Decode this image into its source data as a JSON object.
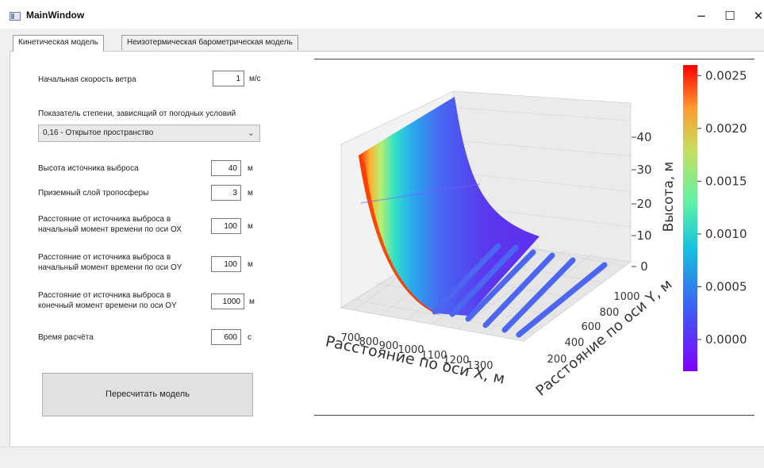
{
  "window": {
    "title": "MainWindow",
    "minimize": "−",
    "maximize": "☐",
    "close": "✕"
  },
  "tabs": [
    {
      "label": "Кинетическая модель"
    },
    {
      "label": "Неизотермическая барометрическая модель"
    }
  ],
  "form": {
    "wind_speed": {
      "label": "Начальная скорость ветра",
      "value": "1",
      "unit": "м/с"
    },
    "exponent": {
      "label": "Показатель степени, зависящий от погодных условий",
      "selected": "0,16 - Открытое пространство"
    },
    "source_height": {
      "label": "Высота источника выброса",
      "value": "40",
      "unit": "м"
    },
    "ground_layer": {
      "label": "Приземный слой тропосферы",
      "value": "3",
      "unit": "м"
    },
    "dist_ox_start": {
      "label_line1": "Расстояние  от  источника  выброса  в",
      "label_line2": "начальный момент времени по оси ОХ",
      "value": "100",
      "unit": "м"
    },
    "dist_oy_start": {
      "label_line1": "Расстояние  от  источника  выброса  в",
      "label_line2": "начальный момент времени по оси ОY",
      "value": "100",
      "unit": "м"
    },
    "dist_oy_end": {
      "label_line1": "Расстояние от источника выброса в",
      "label_line2": "конечный момент времени по оси ОY",
      "value": "1000",
      "unit": "м"
    },
    "calc_time": {
      "label": "Время расчёта",
      "value": "600",
      "unit": "с"
    },
    "recalc_button": "Пересчитать модель"
  },
  "chart_data": {
    "type": "surface3d",
    "xlabel": "Расстояние по оси X, м",
    "ylabel": "Расстояние по оси Y, м",
    "zlabel": "Высота, м",
    "x_ticks": [
      "700",
      "800",
      "900",
      "1000",
      "1100",
      "1200",
      "1300"
    ],
    "y_ticks": [
      "200",
      "400",
      "600",
      "800",
      "1000"
    ],
    "z_ticks": [
      "0",
      "10",
      "20",
      "30",
      "40"
    ],
    "xlim": [
      650,
      1350
    ],
    "ylim": [
      100,
      1050
    ],
    "zlim": [
      0,
      45
    ],
    "colorbar": {
      "colormap": "rainbow",
      "ticks": [
        "0.0000",
        "0.0005",
        "0.0010",
        "0.0015",
        "0.0020",
        "0.0025"
      ],
      "range": [
        -0.0003,
        0.0026
      ]
    },
    "grid": true
  }
}
